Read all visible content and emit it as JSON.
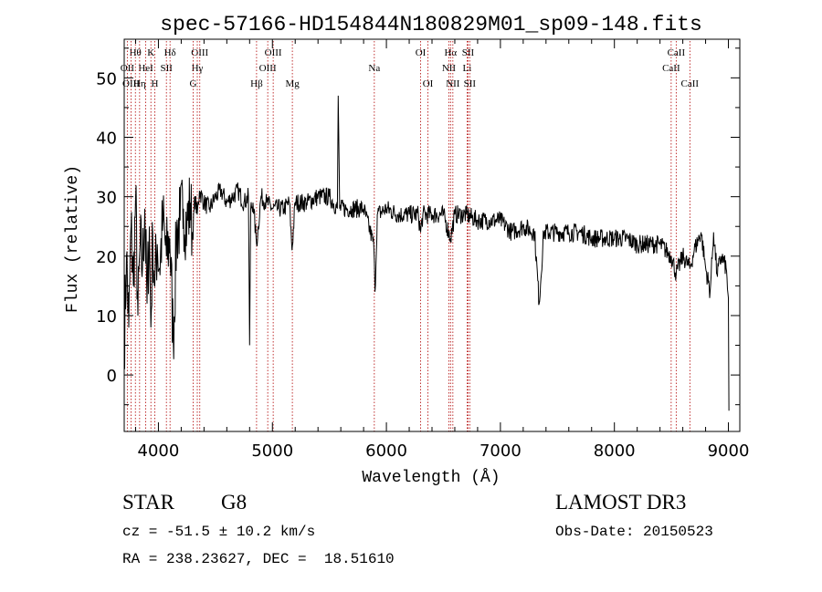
{
  "chart_data": {
    "type": "line",
    "title": "spec-57166-HD154844N180829M01_sp09-148.fits",
    "xlabel": "Wavelength (Å)",
    "ylabel": "Flux (relative)",
    "xlim": [
      3700,
      9100
    ],
    "ylim": [
      -9.5,
      56.5
    ],
    "xticks": [
      4000,
      5000,
      6000,
      7000,
      8000,
      9000
    ],
    "xtick_labels": [
      "4000",
      "5000",
      "6000",
      "7000",
      "8000",
      "9000"
    ],
    "yticks": [
      0,
      10,
      20,
      30,
      40,
      50
    ],
    "ytick_labels": [
      "0",
      "10",
      "20",
      "30",
      "40",
      "50"
    ],
    "series": [
      {
        "name": "flux",
        "x": [
          3700,
          3720,
          3740,
          3760,
          3780,
          3800,
          3820,
          3840,
          3860,
          3880,
          3900,
          3920,
          3934,
          3950,
          3968,
          3990,
          4010,
          4040,
          4070,
          4100,
          4130,
          4160,
          4190,
          4220,
          4250,
          4280,
          4300,
          4320,
          4340,
          4360,
          4400,
          4450,
          4500,
          4550,
          4600,
          4650,
          4700,
          4750,
          4790,
          4800,
          4810,
          4830,
          4861,
          4900,
          4950,
          5000,
          5050,
          5100,
          5150,
          5172,
          5200,
          5300,
          5400,
          5500,
          5570,
          5577,
          5590,
          5700,
          5800,
          5889,
          5900,
          5920,
          6000,
          6100,
          6200,
          6280,
          6300,
          6320,
          6400,
          6500,
          6563,
          6600,
          6700,
          6800,
          6900,
          7000,
          7100,
          7200,
          7300,
          7340,
          7380,
          7500,
          7600,
          7700,
          7800,
          7900,
          8000,
          8100,
          8200,
          8300,
          8400,
          8500,
          8542,
          8600,
          8662,
          8700,
          8760,
          8800,
          8840,
          8870,
          8900,
          8940,
          8980,
          9000,
          9005
        ],
        "y": [
          5,
          20,
          8,
          25,
          15,
          30,
          10,
          22,
          18,
          28,
          12,
          25,
          8,
          24,
          15,
          22,
          18,
          26,
          20,
          23,
          6,
          24,
          26,
          28,
          25,
          29,
          23,
          30,
          27,
          31,
          29,
          28,
          30,
          31,
          29,
          30,
          31,
          29,
          30,
          5,
          28,
          29,
          22,
          30,
          29,
          28,
          28,
          28,
          29,
          21,
          29,
          29,
          30,
          30,
          28,
          47,
          28,
          28,
          28,
          22,
          14,
          27,
          28,
          27,
          27,
          27,
          24,
          27,
          27,
          27,
          23,
          27,
          27,
          26,
          26,
          26,
          24,
          25,
          24,
          12,
          24,
          24,
          24,
          24,
          23,
          23,
          23,
          23,
          22,
          22,
          22,
          20,
          17,
          20,
          18,
          21,
          24,
          18,
          14,
          24,
          17,
          20,
          18,
          13,
          -6
        ]
      }
    ],
    "lines": [
      {
        "label": "Hθ",
        "wavelength": 3798,
        "row": 1
      },
      {
        "label": "OII",
        "wavelength": 3727,
        "row": 2
      },
      {
        "label": "OIII",
        "wavelength": 3760,
        "row": 3
      },
      {
        "label": "K",
        "wavelength": 3934,
        "row": 1
      },
      {
        "label": "HeI",
        "wavelength": 3889,
        "row": 2
      },
      {
        "label": "Hη",
        "wavelength": 3835,
        "row": 3
      },
      {
        "label": "SII",
        "wavelength": 4070,
        "row": 2
      },
      {
        "label": "H",
        "wavelength": 3968,
        "row": 3
      },
      {
        "label": "Hδ",
        "wavelength": 4102,
        "row": 1
      },
      {
        "label": "OIII",
        "wavelength": 4363,
        "row": 1
      },
      {
        "label": "Hγ",
        "wavelength": 4341,
        "row": 2
      },
      {
        "label": "G",
        "wavelength": 4305,
        "row": 3
      },
      {
        "label": "OIII",
        "wavelength": 5007,
        "row": 1
      },
      {
        "label": "OIII",
        "wavelength": 4959,
        "row": 2
      },
      {
        "label": "Hβ",
        "wavelength": 4861,
        "row": 3
      },
      {
        "label": "Mg",
        "wavelength": 5175,
        "row": 3
      },
      {
        "label": "Na",
        "wavelength": 5894,
        "row": 2
      },
      {
        "label": "OI",
        "wavelength": 6300,
        "row": 1
      },
      {
        "label": "OI",
        "wavelength": 6364,
        "row": 3
      },
      {
        "label": "Hα",
        "wavelength": 6563,
        "row": 1
      },
      {
        "label": "NII",
        "wavelength": 6548,
        "row": 2
      },
      {
        "label": "NII",
        "wavelength": 6583,
        "row": 3
      },
      {
        "label": "SII",
        "wavelength": 6716,
        "row": 1
      },
      {
        "label": "Li",
        "wavelength": 6708,
        "row": 2
      },
      {
        "label": "SII",
        "wavelength": 6731,
        "row": 3
      },
      {
        "label": "CaII",
        "wavelength": 8542,
        "row": 1
      },
      {
        "label": "CaII",
        "wavelength": 8498,
        "row": 2
      },
      {
        "label": "CaII",
        "wavelength": 8662,
        "row": 3
      }
    ]
  },
  "info": {
    "class_label": "STAR",
    "subclass": "G8",
    "survey": "LAMOST DR3",
    "cz": "cz = -51.5 ± 10.2 km/s",
    "obs_date": "Obs-Date: 20150523",
    "coords": "RA = 238.23627, DEC =  18.51610"
  },
  "colors": {
    "spectrum": "#000000",
    "line_marker": "#b00000",
    "axes": "#000000"
  }
}
